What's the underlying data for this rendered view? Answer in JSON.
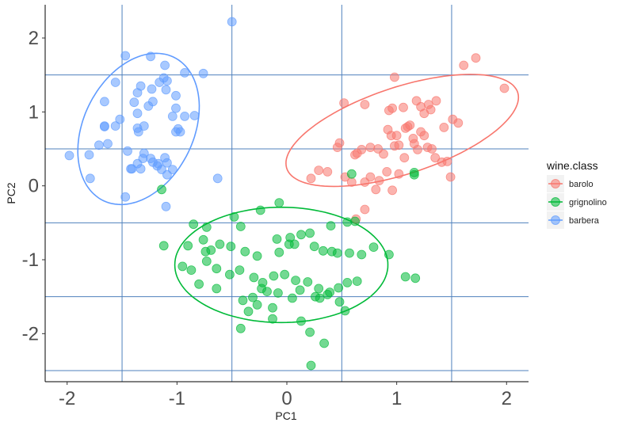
{
  "chart_data": {
    "type": "scatter",
    "xlabel": "PC1",
    "ylabel": "PC2",
    "xlim": [
      -2.2,
      2.2
    ],
    "ylim": [
      -2.65,
      2.45
    ],
    "x_ticks": [
      -2,
      -1,
      0,
      1,
      2
    ],
    "y_ticks": [
      -2,
      -1,
      0,
      1,
      2
    ],
    "x_tick_labels": [
      "-2",
      "-1",
      "0",
      "1",
      "2"
    ],
    "y_tick_labels": [
      "-2",
      "-1",
      "0",
      "1",
      "2"
    ],
    "grid_major_x": [
      -1.5,
      -0.5,
      0.5,
      1.5
    ],
    "grid_major_y": [
      -2.5,
      -1.5,
      -0.5,
      0.5,
      1.5
    ],
    "grid_color": "#4f81bd",
    "legend": {
      "title": "wine.class",
      "placement": "right"
    },
    "series": [
      {
        "name": "barolo",
        "color": "#F8766D",
        "ellipse": {
          "cx": 1.05,
          "cy": 0.75,
          "rx": 1.18,
          "ry": 0.55,
          "angle_deg": 30
        },
        "points": [
          [
            1.61,
            1.63
          ],
          [
            1.72,
            1.73
          ],
          [
            1.98,
            1.32
          ],
          [
            0.98,
            1.47
          ],
          [
            0.52,
            1.12
          ],
          [
            0.71,
            1.1
          ],
          [
            0.93,
            1.02
          ],
          [
            0.96,
            1.05
          ],
          [
            1.06,
            1.06
          ],
          [
            1.1,
            0.8
          ],
          [
            1.18,
            1.15
          ],
          [
            1.22,
            1.07
          ],
          [
            1.25,
            0.98
          ],
          [
            1.29,
            1.1
          ],
          [
            1.31,
            1.03
          ],
          [
            1.36,
            1.15
          ],
          [
            1.43,
            0.79
          ],
          [
            1.51,
            0.9
          ],
          [
            1.56,
            0.85
          ],
          [
            0.62,
            0.42
          ],
          [
            0.64,
            0.44
          ],
          [
            0.68,
            0.49
          ],
          [
            0.76,
            0.52
          ],
          [
            0.83,
            0.5
          ],
          [
            0.88,
            0.43
          ],
          [
            0.92,
            0.76
          ],
          [
            0.95,
            0.68
          ],
          [
            0.98,
            0.54
          ],
          [
            1.0,
            0.68
          ],
          [
            1.02,
            0.55
          ],
          [
            1.07,
            0.38
          ],
          [
            1.08,
            0.78
          ],
          [
            1.12,
            0.82
          ],
          [
            1.15,
            0.64
          ],
          [
            1.16,
            0.57
          ],
          [
            1.19,
            0.49
          ],
          [
            1.22,
            0.73
          ],
          [
            1.25,
            0.68
          ],
          [
            1.28,
            0.52
          ],
          [
            1.32,
            0.5
          ],
          [
            1.35,
            0.38
          ],
          [
            1.41,
            0.32
          ],
          [
            1.46,
            0.33
          ],
          [
            1.49,
            0.12
          ],
          [
            0.48,
            0.58
          ],
          [
            0.46,
            0.52
          ],
          [
            0.37,
            0.19
          ],
          [
            0.53,
            0.12
          ],
          [
            0.59,
            0.05
          ],
          [
            0.71,
            0.05
          ],
          [
            0.76,
            0.12
          ],
          [
            0.81,
            -0.05
          ],
          [
            0.84,
            0.07
          ],
          [
            0.91,
            0.19
          ],
          [
            0.96,
            -0.06
          ],
          [
            1.02,
            0.16
          ],
          [
            0.71,
            -0.32
          ],
          [
            0.63,
            -0.45
          ],
          [
            0.29,
            0.21
          ],
          [
            0.22,
            0.1
          ]
        ]
      },
      {
        "name": "grignolino",
        "color": "#00BA38",
        "ellipse": {
          "cx": -0.05,
          "cy": -1.07,
          "rx": 0.97,
          "ry": 0.78,
          "angle_deg": 0
        },
        "points": [
          [
            -1.14,
            -0.05
          ],
          [
            -0.85,
            -0.52
          ],
          [
            -0.73,
            -0.56
          ],
          [
            -0.42,
            -0.55
          ],
          [
            -0.48,
            -0.42
          ],
          [
            -0.24,
            -0.33
          ],
          [
            -0.07,
            -0.23
          ],
          [
            0.03,
            -0.7
          ],
          [
            0.07,
            -0.79
          ],
          [
            0.13,
            -0.66
          ],
          [
            -0.09,
            -0.72
          ],
          [
            0.4,
            -0.54
          ],
          [
            0.55,
            -0.49
          ],
          [
            0.62,
            -0.48
          ],
          [
            0.21,
            -0.64
          ],
          [
            -0.76,
            -0.73
          ],
          [
            -0.61,
            -0.79
          ],
          [
            -0.51,
            -0.82
          ],
          [
            -0.38,
            -0.89
          ],
          [
            -0.27,
            -0.95
          ],
          [
            -0.07,
            -0.9
          ],
          [
            0.02,
            -0.79
          ],
          [
            0.25,
            -0.82
          ],
          [
            0.33,
            -0.88
          ],
          [
            0.41,
            -0.89
          ],
          [
            0.46,
            -0.91
          ],
          [
            0.57,
            -0.91
          ],
          [
            0.68,
            -0.93
          ],
          [
            0.79,
            -0.83
          ],
          [
            0.93,
            -0.93
          ],
          [
            1.08,
            -1.23
          ],
          [
            -0.9,
            -0.81
          ],
          [
            -0.74,
            -0.89
          ],
          [
            -0.69,
            -0.87
          ],
          [
            -0.73,
            -1.02
          ],
          [
            -0.64,
            -1.12
          ],
          [
            -0.52,
            -1.2
          ],
          [
            -0.43,
            -1.14
          ],
          [
            -0.3,
            -1.24
          ],
          [
            -0.22,
            -1.31
          ],
          [
            -0.12,
            -1.22
          ],
          [
            -0.02,
            -1.2
          ],
          [
            0.08,
            -1.28
          ],
          [
            0.19,
            -1.3
          ],
          [
            0.29,
            -1.39
          ],
          [
            0.39,
            -1.44
          ],
          [
            0.47,
            -1.38
          ],
          [
            0.55,
            -1.31
          ],
          [
            0.64,
            -1.29
          ],
          [
            -0.95,
            -1.09
          ],
          [
            -1.12,
            -0.81
          ],
          [
            -0.87,
            -1.14
          ],
          [
            -0.8,
            -1.33
          ],
          [
            -0.64,
            -1.39
          ],
          [
            -0.4,
            -1.55
          ],
          [
            -0.31,
            -1.51
          ],
          [
            -0.23,
            -1.39
          ],
          [
            -0.18,
            -1.43
          ],
          [
            -0.08,
            -1.45
          ],
          [
            0.05,
            -1.52
          ],
          [
            0.12,
            -1.41
          ],
          [
            0.26,
            -1.5
          ],
          [
            0.37,
            -1.47
          ],
          [
            0.48,
            -1.57
          ],
          [
            0.53,
            -1.69
          ],
          [
            -0.35,
            -1.7
          ],
          [
            -0.27,
            -1.61
          ],
          [
            -0.13,
            -1.65
          ],
          [
            -0.42,
            -1.93
          ],
          [
            -0.13,
            -1.8
          ],
          [
            0.21,
            -1.98
          ],
          [
            0.13,
            -1.83
          ],
          [
            0.3,
            -1.52
          ],
          [
            0.34,
            -2.13
          ],
          [
            0.22,
            -2.43
          ],
          [
            1.17,
            -1.25
          ],
          [
            1.16,
            0.15
          ],
          [
            0.59,
            0.16
          ],
          [
            1.16,
            0.18
          ]
        ]
      },
      {
        "name": "barbera",
        "color": "#619CFF",
        "ellipse": {
          "cx": -1.35,
          "cy": 0.77,
          "rx": 0.52,
          "ry": 1.04,
          "angle_deg": -12
        },
        "points": [
          [
            -1.24,
            1.75
          ],
          [
            -1.11,
            1.63
          ],
          [
            -1.47,
            1.76
          ],
          [
            -1.56,
            1.4
          ],
          [
            -1.36,
            1.26
          ],
          [
            -1.33,
            1.35
          ],
          [
            -1.23,
            1.31
          ],
          [
            -1.16,
            1.4
          ],
          [
            -1.12,
            1.46
          ],
          [
            -1.09,
            1.42
          ],
          [
            -0.93,
            1.53
          ],
          [
            -0.76,
            1.52
          ],
          [
            -1.22,
            1.14
          ],
          [
            -1.39,
            1.13
          ],
          [
            -1.26,
            1.08
          ],
          [
            -1.1,
            1.3
          ],
          [
            -1.01,
            1.22
          ],
          [
            -1.01,
            1.05
          ],
          [
            -1.04,
            0.94
          ],
          [
            -0.99,
            0.77
          ],
          [
            -0.93,
            0.94
          ],
          [
            -0.84,
            0.95
          ],
          [
            -1.66,
            1.14
          ],
          [
            -1.66,
            0.8
          ],
          [
            -1.66,
            0.81
          ],
          [
            -1.56,
            0.81
          ],
          [
            -1.36,
            0.98
          ],
          [
            -1.36,
            0.78
          ],
          [
            -1.35,
            0.73
          ],
          [
            -1.3,
            0.81
          ],
          [
            -0.97,
            0.73
          ],
          [
            -1.01,
            0.73
          ],
          [
            -1.52,
            0.9
          ],
          [
            -1.63,
            0.57
          ],
          [
            -1.71,
            0.55
          ],
          [
            -1.45,
            0.47
          ],
          [
            -1.3,
            0.44
          ],
          [
            -1.22,
            0.32
          ],
          [
            -1.18,
            0.27
          ],
          [
            -1.11,
            0.38
          ],
          [
            -1.09,
            0.31
          ],
          [
            -1.09,
            0.15
          ],
          [
            -1.14,
            0.22
          ],
          [
            -1.04,
            0.22
          ],
          [
            -1.36,
            0.3
          ],
          [
            -1.31,
            0.37
          ],
          [
            -1.41,
            0.23
          ],
          [
            -1.42,
            0.23
          ],
          [
            -1.8,
            0.42
          ],
          [
            -1.98,
            0.41
          ],
          [
            -1.79,
            0.1
          ],
          [
            -1.47,
            -0.15
          ],
          [
            -0.63,
            0.1
          ],
          [
            -1.1,
            -0.28
          ],
          [
            -0.5,
            2.22
          ],
          [
            -1.33,
            0.23
          ],
          [
            -1.24,
            0.37
          ],
          [
            -1.17,
            0.3
          ]
        ]
      }
    ]
  }
}
